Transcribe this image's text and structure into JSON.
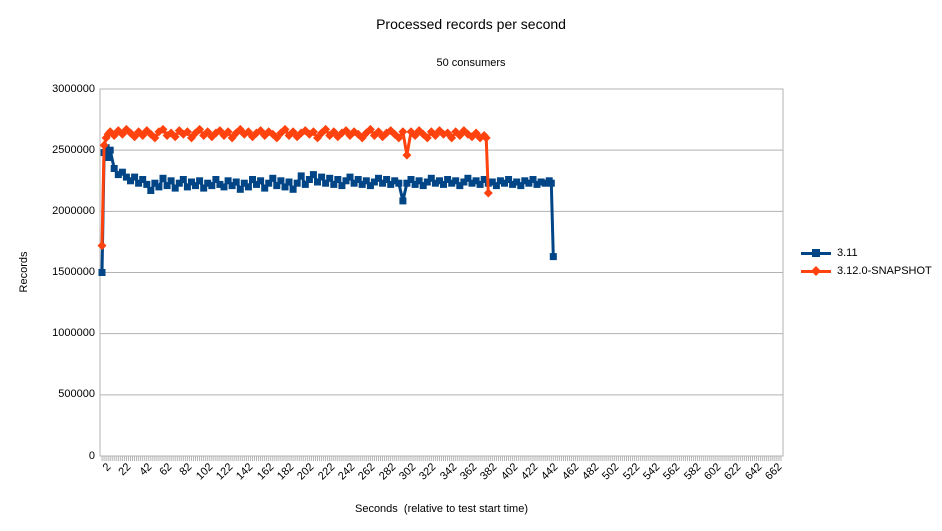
{
  "chart": {
    "title": "Processed records per second",
    "subtitle": "50 consumers",
    "colors": {
      "series1": "#004586",
      "series2": "#FF420E",
      "grid": "#B3B3B3",
      "text": "#000000",
      "background": "#FFFFFF"
    }
  },
  "chart_data": {
    "type": "line",
    "title": "Processed records per second",
    "subtitle": "50 consumers",
    "xlabel": "Seconds  (relative to test start time)",
    "ylabel": "Records",
    "xlim": [
      0,
      672
    ],
    "ylim": [
      0,
      3000000
    ],
    "grid": "horizontal-only",
    "legend_position": "right",
    "axis_color": "#B3B3B3",
    "yticks": [
      0,
      500000,
      1000000,
      1500000,
      2000000,
      2500000,
      3000000
    ],
    "xticks": [
      2,
      22,
      42,
      62,
      82,
      102,
      122,
      142,
      162,
      182,
      202,
      222,
      242,
      262,
      282,
      302,
      322,
      342,
      362,
      382,
      402,
      422,
      442,
      462,
      482,
      502,
      522,
      542,
      562,
      582,
      602,
      622,
      642,
      662
    ],
    "minor_tick_step": 2,
    "series": [
      {
        "name": "3.11",
        "color": "#004586",
        "marker": "square",
        "points": [
          [
            2,
            1500000
          ],
          [
            4,
            2480000
          ],
          [
            6,
            2520000
          ],
          [
            8,
            2440000
          ],
          [
            10,
            2500000
          ],
          [
            14,
            2350000
          ],
          [
            18,
            2300000
          ],
          [
            22,
            2320000
          ],
          [
            26,
            2280000
          ],
          [
            30,
            2250000
          ],
          [
            34,
            2280000
          ],
          [
            38,
            2230000
          ],
          [
            42,
            2260000
          ],
          [
            46,
            2220000
          ],
          [
            50,
            2170000
          ],
          [
            54,
            2230000
          ],
          [
            58,
            2200000
          ],
          [
            62,
            2270000
          ],
          [
            66,
            2210000
          ],
          [
            70,
            2250000
          ],
          [
            74,
            2190000
          ],
          [
            78,
            2230000
          ],
          [
            82,
            2260000
          ],
          [
            86,
            2200000
          ],
          [
            90,
            2240000
          ],
          [
            94,
            2210000
          ],
          [
            98,
            2250000
          ],
          [
            102,
            2190000
          ],
          [
            106,
            2230000
          ],
          [
            110,
            2210000
          ],
          [
            114,
            2260000
          ],
          [
            118,
            2220000
          ],
          [
            122,
            2200000
          ],
          [
            126,
            2250000
          ],
          [
            130,
            2210000
          ],
          [
            134,
            2240000
          ],
          [
            138,
            2180000
          ],
          [
            142,
            2230000
          ],
          [
            146,
            2200000
          ],
          [
            150,
            2260000
          ],
          [
            154,
            2220000
          ],
          [
            158,
            2250000
          ],
          [
            162,
            2190000
          ],
          [
            166,
            2230000
          ],
          [
            170,
            2270000
          ],
          [
            174,
            2210000
          ],
          [
            178,
            2250000
          ],
          [
            182,
            2200000
          ],
          [
            186,
            2240000
          ],
          [
            190,
            2180000
          ],
          [
            194,
            2230000
          ],
          [
            198,
            2290000
          ],
          [
            202,
            2220000
          ],
          [
            206,
            2260000
          ],
          [
            210,
            2300000
          ],
          [
            214,
            2240000
          ],
          [
            218,
            2280000
          ],
          [
            222,
            2230000
          ],
          [
            226,
            2270000
          ],
          [
            230,
            2220000
          ],
          [
            234,
            2260000
          ],
          [
            238,
            2210000
          ],
          [
            242,
            2250000
          ],
          [
            246,
            2280000
          ],
          [
            250,
            2230000
          ],
          [
            254,
            2260000
          ],
          [
            258,
            2220000
          ],
          [
            262,
            2250000
          ],
          [
            266,
            2210000
          ],
          [
            270,
            2240000
          ],
          [
            274,
            2270000
          ],
          [
            278,
            2230000
          ],
          [
            282,
            2260000
          ],
          [
            286,
            2220000
          ],
          [
            290,
            2250000
          ],
          [
            294,
            2230000
          ],
          [
            298,
            2085000
          ],
          [
            302,
            2230000
          ],
          [
            306,
            2260000
          ],
          [
            310,
            2220000
          ],
          [
            314,
            2250000
          ],
          [
            318,
            2210000
          ],
          [
            322,
            2240000
          ],
          [
            326,
            2270000
          ],
          [
            330,
            2230000
          ],
          [
            334,
            2250000
          ],
          [
            338,
            2220000
          ],
          [
            342,
            2260000
          ],
          [
            346,
            2230000
          ],
          [
            350,
            2250000
          ],
          [
            354,
            2210000
          ],
          [
            358,
            2240000
          ],
          [
            362,
            2270000
          ],
          [
            366,
            2230000
          ],
          [
            370,
            2250000
          ],
          [
            374,
            2220000
          ],
          [
            378,
            2260000
          ],
          [
            382,
            2230000
          ],
          [
            386,
            2240000
          ],
          [
            390,
            2210000
          ],
          [
            394,
            2250000
          ],
          [
            398,
            2230000
          ],
          [
            402,
            2260000
          ],
          [
            406,
            2220000
          ],
          [
            410,
            2240000
          ],
          [
            414,
            2210000
          ],
          [
            418,
            2250000
          ],
          [
            422,
            2230000
          ],
          [
            426,
            2260000
          ],
          [
            430,
            2220000
          ],
          [
            434,
            2240000
          ],
          [
            438,
            2230000
          ],
          [
            442,
            2250000
          ],
          [
            444,
            2230000
          ],
          [
            446,
            1630000
          ]
        ]
      },
      {
        "name": "3.12.0-SNAPSHOT",
        "color": "#FF420E",
        "marker": "diamond",
        "points": [
          [
            2,
            1720000
          ],
          [
            4,
            2540000
          ],
          [
            6,
            2600000
          ],
          [
            8,
            2630000
          ],
          [
            10,
            2650000
          ],
          [
            14,
            2620000
          ],
          [
            18,
            2660000
          ],
          [
            22,
            2630000
          ],
          [
            26,
            2670000
          ],
          [
            30,
            2640000
          ],
          [
            34,
            2610000
          ],
          [
            38,
            2650000
          ],
          [
            42,
            2620000
          ],
          [
            46,
            2660000
          ],
          [
            50,
            2630000
          ],
          [
            54,
            2600000
          ],
          [
            58,
            2650000
          ],
          [
            62,
            2670000
          ],
          [
            66,
            2620000
          ],
          [
            70,
            2640000
          ],
          [
            74,
            2610000
          ],
          [
            78,
            2660000
          ],
          [
            82,
            2630000
          ],
          [
            86,
            2650000
          ],
          [
            90,
            2600000
          ],
          [
            94,
            2640000
          ],
          [
            98,
            2670000
          ],
          [
            102,
            2620000
          ],
          [
            106,
            2650000
          ],
          [
            110,
            2610000
          ],
          [
            114,
            2640000
          ],
          [
            118,
            2660000
          ],
          [
            122,
            2620000
          ],
          [
            126,
            2650000
          ],
          [
            130,
            2600000
          ],
          [
            134,
            2640000
          ],
          [
            138,
            2670000
          ],
          [
            142,
            2630000
          ],
          [
            146,
            2650000
          ],
          [
            150,
            2610000
          ],
          [
            154,
            2640000
          ],
          [
            158,
            2660000
          ],
          [
            162,
            2620000
          ],
          [
            166,
            2650000
          ],
          [
            170,
            2630000
          ],
          [
            174,
            2600000
          ],
          [
            178,
            2640000
          ],
          [
            182,
            2670000
          ],
          [
            186,
            2620000
          ],
          [
            190,
            2650000
          ],
          [
            194,
            2610000
          ],
          [
            198,
            2640000
          ],
          [
            202,
            2660000
          ],
          [
            206,
            2630000
          ],
          [
            210,
            2650000
          ],
          [
            214,
            2600000
          ],
          [
            218,
            2640000
          ],
          [
            222,
            2670000
          ],
          [
            226,
            2620000
          ],
          [
            230,
            2650000
          ],
          [
            234,
            2610000
          ],
          [
            238,
            2640000
          ],
          [
            242,
            2660000
          ],
          [
            246,
            2620000
          ],
          [
            250,
            2650000
          ],
          [
            254,
            2630000
          ],
          [
            258,
            2600000
          ],
          [
            262,
            2640000
          ],
          [
            266,
            2670000
          ],
          [
            270,
            2620000
          ],
          [
            274,
            2650000
          ],
          [
            278,
            2610000
          ],
          [
            282,
            2640000
          ],
          [
            286,
            2660000
          ],
          [
            290,
            2630000
          ],
          [
            294,
            2600000
          ],
          [
            298,
            2650000
          ],
          [
            302,
            2460000
          ],
          [
            306,
            2650000
          ],
          [
            310,
            2620000
          ],
          [
            314,
            2660000
          ],
          [
            318,
            2630000
          ],
          [
            322,
            2600000
          ],
          [
            326,
            2650000
          ],
          [
            330,
            2620000
          ],
          [
            334,
            2660000
          ],
          [
            338,
            2630000
          ],
          [
            342,
            2640000
          ],
          [
            346,
            2600000
          ],
          [
            350,
            2650000
          ],
          [
            354,
            2620000
          ],
          [
            358,
            2660000
          ],
          [
            362,
            2630000
          ],
          [
            366,
            2610000
          ],
          [
            370,
            2640000
          ],
          [
            374,
            2600000
          ],
          [
            378,
            2620000
          ],
          [
            380,
            2600000
          ],
          [
            382,
            2150000
          ]
        ]
      }
    ]
  }
}
